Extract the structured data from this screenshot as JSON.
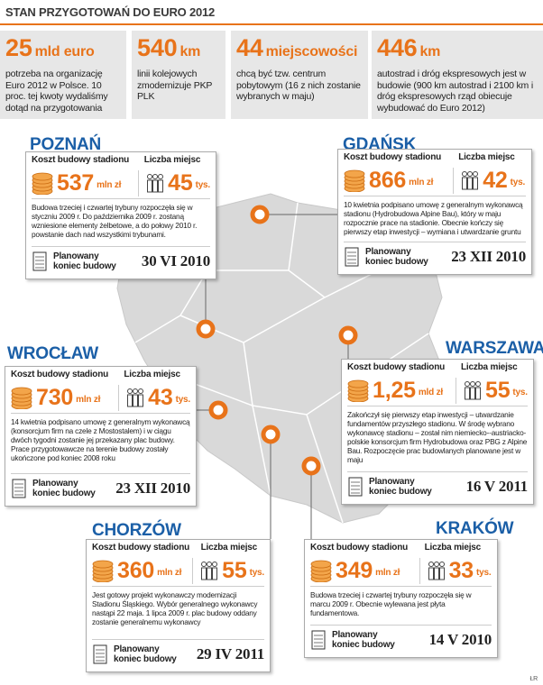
{
  "header": {
    "title": "STAN PRZYGOTOWAŃ DO EURO 2012"
  },
  "stats": [
    {
      "number": "25",
      "unit": "mld euro",
      "text": "potrzeba na organizację Euro 2012 w Polsce. 10 proc. tej kwoty wydaliśmy dotąd na przygotowania"
    },
    {
      "number": "540",
      "unit": "km",
      "text": "linii kolejowych zmodernizuje PKP PLK"
    },
    {
      "number": "44",
      "unit": "miejscowości",
      "text": "chcą być tzw. centrum pobytowym (16 z nich zostanie wybranych w maju)"
    },
    {
      "number": "446",
      "unit": "km",
      "text": "autostrad i dróg ekspresowych jest w budowie (900 km autostrad i 2100 km i dróg ekspresowych rząd obiecuje wybudować do Euro 2012)"
    }
  ],
  "cities": [
    {
      "name": "POZNAŃ",
      "cost_label": "Koszt budowy stadionu",
      "cost": "537",
      "cost_unit": "mln zł",
      "seats_label": "Liczba miejsc",
      "seats": "45",
      "seats_unit": "tys.",
      "description": "Budowa trzeciej i czwartej trybuny rozpoczęła się w styczniu 2009 r. Do października 2009 r. zostaną wzniesione elementy żelbetowe, a do połowy 2010 r. powstanie dach nad wszystkimi trybunami.",
      "finish_label": "Planowany koniec budowy",
      "finish_date": "30 VI 2010"
    },
    {
      "name": "GDAŃSK",
      "cost_label": "Koszt budowy stadionu",
      "cost": "866",
      "cost_unit": "mln zł",
      "seats_label": "Liczba miejsc",
      "seats": "42",
      "seats_unit": "tys.",
      "description": "10 kwietnia podpisano umowę z generalnym wykonawcą stadionu (Hydrobudowa Alpine Bau), który w maju rozpocznie prace na stadionie. Obecnie kończy się pierwszy etap inwestycji – wymiana i utwardzanie gruntu",
      "finish_label": "Planowany koniec budowy",
      "finish_date": "23 XII 2010"
    },
    {
      "name": "WROCŁAW",
      "cost_label": "Koszt budowy stadionu",
      "cost": "730",
      "cost_unit": "mln zł",
      "seats_label": "Liczba miejsc",
      "seats": "43",
      "seats_unit": "tys.",
      "description": "14 kwietnia podpisano umowę z generalnym wykonawcą (konsorcjum firm na czele z Mostostalem) i w ciągu dwóch tygodni zostanie jej przekazany plac budowy. Prace przygotowawcze na terenie budowy zostały ukończone pod koniec 2008 roku",
      "finish_label": "Planowany koniec budowy",
      "finish_date": "23 XII 2010"
    },
    {
      "name": "WARSZAWA",
      "cost_label": "Koszt budowy stadionu",
      "cost": "1,25",
      "cost_unit": "mld zł",
      "seats_label": "Liczba miejsc",
      "seats": "55",
      "seats_unit": "tys.",
      "description": "Zakończył się pierwszy etap inwestycji – utwardzanie fundamentów przyszłego stadionu. W środę wybrano wykonawcę stadionu – został nim niemiecko--austriacko-polskie konsorcjum firm Hydrobudowa oraz PBG z Alpine Bau. Rozpoczęcie prac budowlanych planowane jest w maju",
      "finish_label": "Planowany koniec budowy",
      "finish_date": "16 V 2011"
    },
    {
      "name": "CHORZÓW",
      "cost_label": "Koszt budowy stadionu",
      "cost": "360",
      "cost_unit": "mln zł",
      "seats_label": "Liczba miejsc",
      "seats": "55",
      "seats_unit": "tys.",
      "description": "Jest gotowy projekt wykonawczy modernizacji Stadionu Śląskiego. Wybór generalnego wykonawcy nastąpi 22 maja. 1 lipca 2009 r. plac budowy oddany zostanie generalnemu wykonawcy",
      "finish_label": "Planowany koniec budowy",
      "finish_date": "29 IV 2011"
    },
    {
      "name": "KRAKÓW",
      "cost_label": "Koszt budowy stadionu",
      "cost": "349",
      "cost_unit": "mln zł",
      "seats_label": "Liczba miejsc",
      "seats": "33",
      "seats_unit": "tys.",
      "description": "Budowa trzeciej i czwartej trybuny rozpoczęła się w marcu 2009 r. Obecnie wylewana jest płyta fundamentowa.",
      "finish_label": "Planowany koniec budowy",
      "finish_date": "14 V 2010"
    }
  ],
  "credit": "ŁR"
}
